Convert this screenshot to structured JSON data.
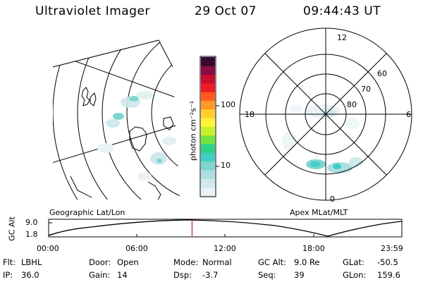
{
  "header": {
    "title": "Ultraviolet Imager",
    "date": "29 Oct 07",
    "time": "09:44:43 UT"
  },
  "colorbar": {
    "unit_label": "photon cm⁻²s⁻¹",
    "ticks": [
      "100",
      "10"
    ],
    "colors": [
      "#e9f3f6",
      "#cfe8ec",
      "#aedfe0",
      "#7fd6cf",
      "#42cdc2",
      "#2dd28a",
      "#72e23e",
      "#c9ee2a",
      "#fff43a",
      "#ffcf30",
      "#ff9a25",
      "#ff5a20",
      "#f01a24",
      "#c8102c",
      "#8a0c44",
      "#3a0830"
    ]
  },
  "polar_map": {
    "hour_labels": {
      "top": "12",
      "left": "18",
      "right": "6",
      "bottom": "0"
    },
    "lat_labels": [
      "60",
      "70",
      "80"
    ]
  },
  "geo_label": "Geographic Lat/Lon",
  "apex_label": "Apex MLat/MLT",
  "altitude_plot": {
    "ylabel": "GC Alt",
    "yticks": [
      "9.0",
      "1.8"
    ],
    "xticks": [
      "00:00",
      "06:00",
      "12:00",
      "18:00",
      "23:59"
    ],
    "marker_time_hours": 9.745,
    "marker_color": "#cc2255"
  },
  "status": {
    "row1": [
      {
        "key": "Flt:",
        "value": "LBHL"
      },
      {
        "key": "Door:",
        "value": "Open"
      },
      {
        "key": "Mode:",
        "value": "Normal"
      },
      {
        "key": "GC Alt:",
        "value": "9.0 Re"
      },
      {
        "key": "GLat:",
        "value": "-50.5"
      }
    ],
    "row2": [
      {
        "key": "IP:",
        "value": "36.0"
      },
      {
        "key": "Gain:",
        "value": "14"
      },
      {
        "key": "Dsp:",
        "value": "-3.7"
      },
      {
        "key": "Seq:",
        "value": "39"
      },
      {
        "key": "GLon:",
        "value": "159.6"
      }
    ]
  }
}
